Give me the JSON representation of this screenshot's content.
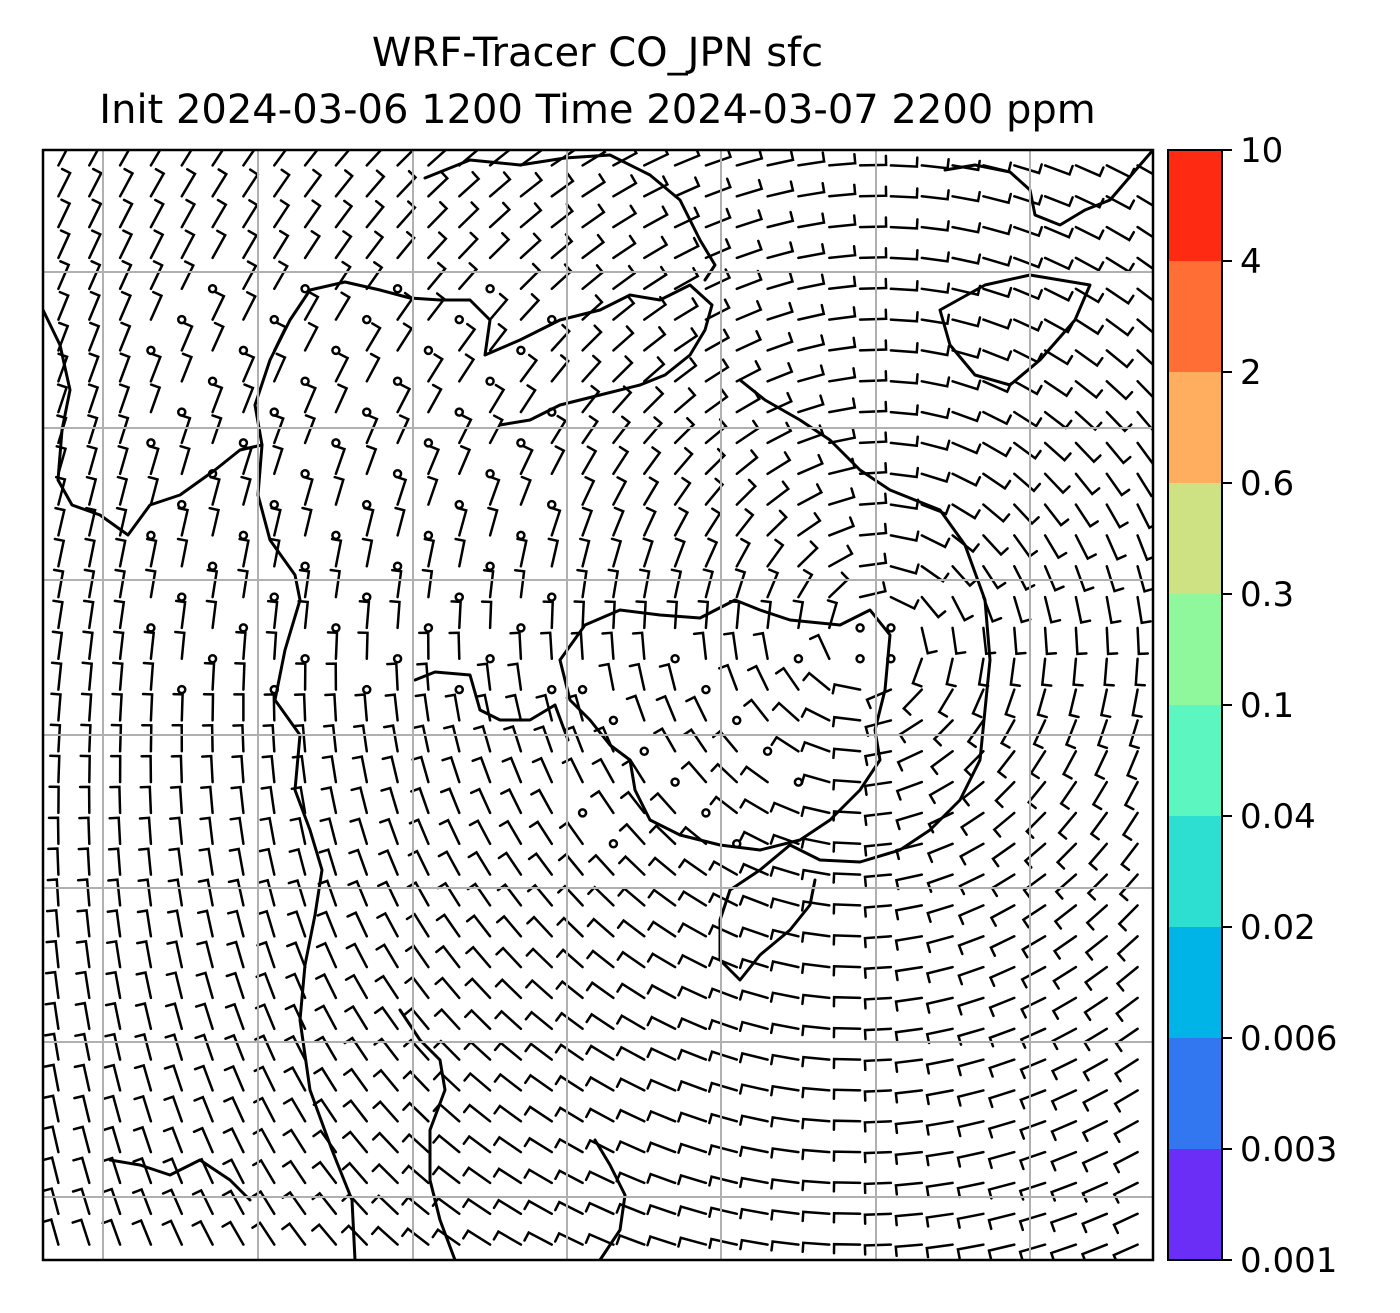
{
  "title": {
    "line1": "WRF-Tracer CO_JPN sfc",
    "line2": "Init 2024-03-06 1200 Time 2024-03-07 2200 ppm"
  },
  "map": {
    "field": "surface wind barbs over coastline map",
    "gridlines": true,
    "grid_color": "#b0b0b0",
    "barb_color": "#000000"
  },
  "colorbar": {
    "orientation": "vertical",
    "position": "right",
    "tick_labels": [
      "10",
      "4",
      "2",
      "0.6",
      "0.3",
      "0.1",
      "0.04",
      "0.02",
      "0.006",
      "0.003",
      "0.001"
    ],
    "colors_top_to_bottom": [
      "#ff2a12",
      "#ff6e35",
      "#ffad5f",
      "#cfe283",
      "#8ff79c",
      "#5cf6c1",
      "#2ddfd1",
      "#00b4e8",
      "#3377f0",
      "#6a2ef7"
    ]
  }
}
